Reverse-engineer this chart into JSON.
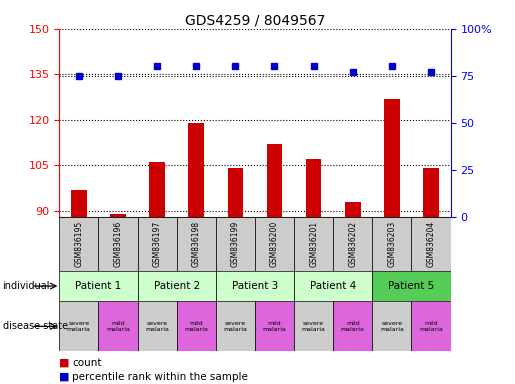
{
  "title": "GDS4259 / 8049567",
  "samples": [
    "GSM836195",
    "GSM836196",
    "GSM836197",
    "GSM836198",
    "GSM836199",
    "GSM836200",
    "GSM836201",
    "GSM836202",
    "GSM836203",
    "GSM836204"
  ],
  "counts": [
    97,
    89,
    106,
    119,
    104,
    112,
    107,
    93,
    127,
    104
  ],
  "percentiles": [
    75,
    75,
    80,
    80,
    80,
    80,
    80,
    77,
    80,
    77
  ],
  "ylim_left": [
    88,
    150
  ],
  "ylim_right": [
    0,
    100
  ],
  "yticks_left": [
    90,
    105,
    120,
    135,
    150
  ],
  "yticks_right": [
    0,
    25,
    50,
    75,
    100
  ],
  "bar_color": "#cc0000",
  "square_color": "#0000cc",
  "dot_line_pct": 75,
  "patients": [
    {
      "label": "Patient 1",
      "start": 0,
      "end": 2,
      "color": "#ccffcc"
    },
    {
      "label": "Patient 2",
      "start": 2,
      "end": 4,
      "color": "#ccffcc"
    },
    {
      "label": "Patient 3",
      "start": 4,
      "end": 6,
      "color": "#ccffcc"
    },
    {
      "label": "Patient 4",
      "start": 6,
      "end": 8,
      "color": "#ccffcc"
    },
    {
      "label": "Patient 5",
      "start": 8,
      "end": 10,
      "color": "#55cc55"
    }
  ],
  "disease_states": [
    {
      "label": "severe\nmalaria",
      "sample_idx": 0,
      "color": "#cccccc"
    },
    {
      "label": "mild\nmalaria",
      "sample_idx": 1,
      "color": "#dd66dd"
    },
    {
      "label": "severe\nmalaria",
      "sample_idx": 2,
      "color": "#cccccc"
    },
    {
      "label": "mild\nmalaria",
      "sample_idx": 3,
      "color": "#dd66dd"
    },
    {
      "label": "severe\nmalaria",
      "sample_idx": 4,
      "color": "#cccccc"
    },
    {
      "label": "mild\nmalaria",
      "sample_idx": 5,
      "color": "#dd66dd"
    },
    {
      "label": "severe\nmalaria",
      "sample_idx": 6,
      "color": "#cccccc"
    },
    {
      "label": "mild\nmalaria",
      "sample_idx": 7,
      "color": "#dd66dd"
    },
    {
      "label": "severe\nmalaria",
      "sample_idx": 8,
      "color": "#cccccc"
    },
    {
      "label": "mild\nmalaria",
      "sample_idx": 9,
      "color": "#dd66dd"
    }
  ],
  "legend_count_label": "count",
  "legend_pct_label": "percentile rank within the sample",
  "individual_label": "individual",
  "disease_state_label": "disease state",
  "bg_color": "#ffffff"
}
